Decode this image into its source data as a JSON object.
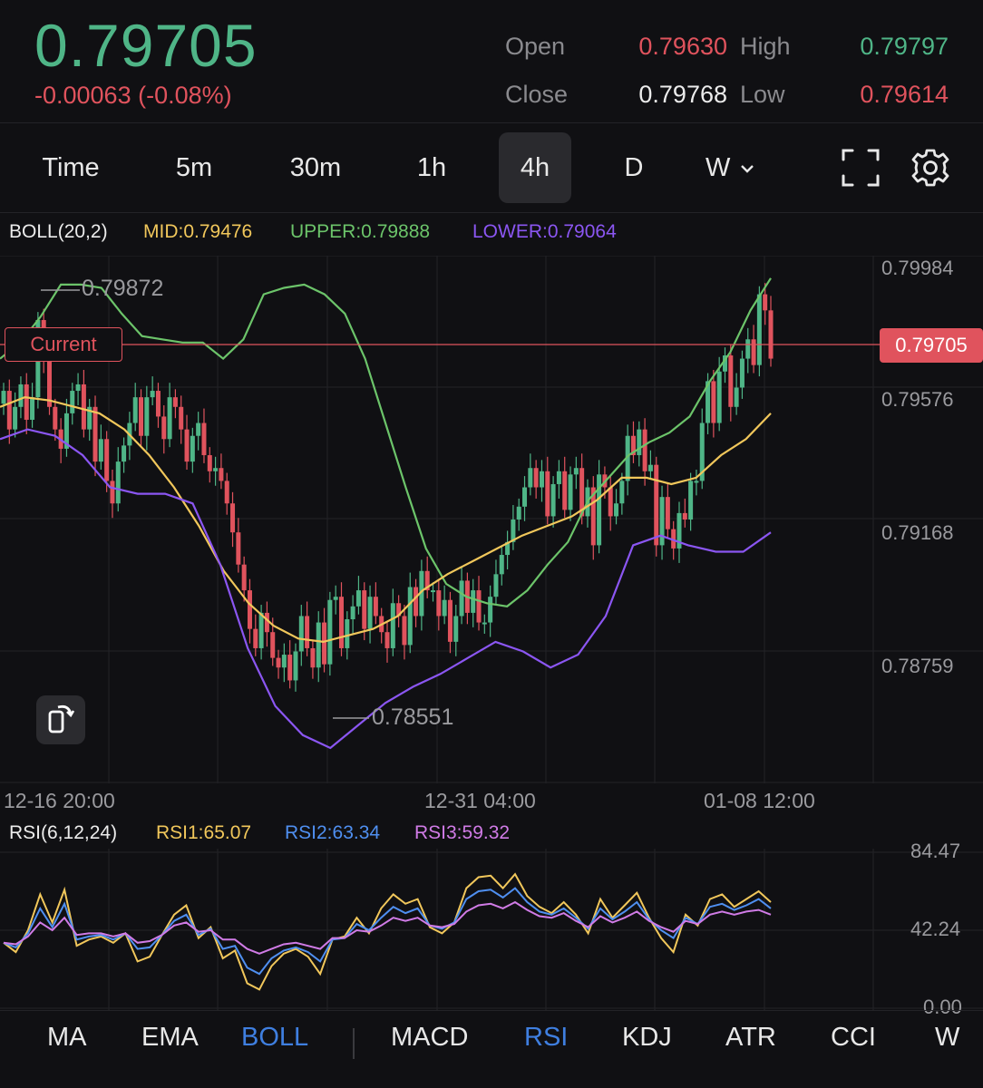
{
  "header": {
    "price": "0.79705",
    "change": "-0.00063 (-0.08%)",
    "open_label": "Open",
    "open_value": "0.79630",
    "high_label": "High",
    "high_value": "0.79797",
    "close_label": "Close",
    "close_value": "0.79768",
    "low_label": "Low",
    "low_value": "0.79614"
  },
  "timeframes": [
    "Time",
    "5m",
    "30m",
    "1h",
    "4h",
    "D",
    "W"
  ],
  "active_timeframe": "4h",
  "icons": {
    "fullscreen": "fullscreen-icon",
    "settings": "gear-icon",
    "rotate": "rotate-screen-icon",
    "dropdown": "chevron-down-icon"
  },
  "boll_legend": {
    "name": "BOLL(20,2)",
    "mid": "MID:0.79476",
    "upper": "UPPER:0.79888",
    "lower": "LOWER:0.79064"
  },
  "rsi_legend": {
    "name": "RSI(6,12,24)",
    "rsi1": "RSI1:65.07",
    "rsi2": "RSI2:63.34",
    "rsi3": "RSI3:59.32"
  },
  "price_axis": [
    "0.79984",
    "0.79576",
    "0.79168",
    "0.78759"
  ],
  "rsi_axis": [
    "84.47",
    "42.24",
    "0.00"
  ],
  "time_axis": [
    "12-16 20:00",
    "12-31 04:00",
    "01-08 12:00"
  ],
  "markers": {
    "high": "0.79872",
    "low": "0.78551",
    "current_label": "Current",
    "current_price": "0.79705"
  },
  "indicator_tabs": [
    "MA",
    "EMA",
    "BOLL",
    "MACD",
    "RSI",
    "KDJ",
    "ATR",
    "CCI",
    "W"
  ],
  "active_indicator_tabs": [
    "BOLL",
    "RSI"
  ],
  "colors": {
    "up": "#4fb587",
    "down": "#e0535d",
    "mid": "#f1c75b",
    "upper": "#6cc46a",
    "lower": "#8b56f2",
    "rsi1": "#f1c75b",
    "rsi2": "#4f8ff0",
    "rsi3": "#d07be6",
    "accent": "#3f7fe0"
  },
  "chart_data": {
    "type": "candlestick",
    "y_range": [
      0.7838,
      0.8002
    ],
    "candles_close": [
      0.796,
      0.7948,
      0.7955,
      0.7962,
      0.7951,
      0.7958,
      0.7982,
      0.797,
      0.7955,
      0.7948,
      0.7942,
      0.7953,
      0.796,
      0.7962,
      0.7948,
      0.7955,
      0.7938,
      0.7945,
      0.7932,
      0.7925,
      0.7938,
      0.7943,
      0.795,
      0.7958,
      0.7946,
      0.7958,
      0.796,
      0.7952,
      0.7945,
      0.7958,
      0.7955,
      0.7948,
      0.7938,
      0.7946,
      0.795,
      0.794,
      0.7935,
      0.7936,
      0.7932,
      0.7925,
      0.7916,
      0.7906,
      0.7898,
      0.7886,
      0.788,
      0.7891,
      0.7885,
      0.7877,
      0.7874,
      0.7878,
      0.787,
      0.7879,
      0.789,
      0.788,
      0.7874,
      0.7888,
      0.7875,
      0.7895,
      0.7896,
      0.788,
      0.7889,
      0.7893,
      0.7898,
      0.7886,
      0.7896,
      0.789,
      0.7885,
      0.788,
      0.7894,
      0.789,
      0.7881,
      0.7899,
      0.789,
      0.7904,
      0.7898,
      0.7898,
      0.789,
      0.7895,
      0.7882,
      0.789,
      0.7901,
      0.7891,
      0.7898,
      0.7888,
      0.7888,
      0.7896,
      0.7903,
      0.7909,
      0.7913,
      0.792,
      0.7924,
      0.793,
      0.7936,
      0.793,
      0.7935,
      0.7921,
      0.7931,
      0.7935,
      0.7923,
      0.7934,
      0.7936,
      0.7921,
      0.793,
      0.7912,
      0.7934,
      0.793,
      0.7921,
      0.7925,
      0.7932,
      0.7946,
      0.794,
      0.7948,
      0.7935,
      0.7937,
      0.7912,
      0.7927,
      0.7917,
      0.7911,
      0.7922,
      0.792,
      0.7932,
      0.7932,
      0.795,
      0.7963,
      0.795,
      0.7966,
      0.7971,
      0.7955,
      0.7961,
      0.797,
      0.7976,
      0.7968,
      0.799,
      0.7985,
      0.797
    ],
    "boll_upper": [
      0.797,
      0.7975,
      0.7983,
      0.7993,
      0.7993,
      0.7992,
      0.7984,
      0.7977,
      0.7976,
      0.7975,
      0.7975,
      0.797,
      0.7976,
      0.799,
      0.7992,
      0.7993,
      0.799,
      0.7984,
      0.797,
      0.795,
      0.793,
      0.7911,
      0.79,
      0.7896,
      0.7894,
      0.7893,
      0.7898,
      0.7906,
      0.7913,
      0.7926,
      0.7933,
      0.794,
      0.7944,
      0.7947,
      0.7952,
      0.7963,
      0.7972,
      0.7985,
      0.7995
    ],
    "boll_mid": [
      0.7955,
      0.7958,
      0.7957,
      0.7955,
      0.7953,
      0.7948,
      0.794,
      0.793,
      0.7918,
      0.7904,
      0.7894,
      0.7887,
      0.7883,
      0.7882,
      0.7884,
      0.7886,
      0.789,
      0.7898,
      0.7903,
      0.7907,
      0.7911,
      0.7915,
      0.7918,
      0.7921,
      0.7926,
      0.7933,
      0.7933,
      0.7931,
      0.7933,
      0.794,
      0.7945,
      0.7953
    ],
    "boll_lower": [
      0.7945,
      0.7948,
      0.7946,
      0.794,
      0.793,
      0.7928,
      0.7928,
      0.7925,
      0.7906,
      0.788,
      0.7862,
      0.7853,
      0.7849,
      0.7856,
      0.7863,
      0.7868,
      0.7872,
      0.7877,
      0.7882,
      0.7879,
      0.7874,
      0.7878,
      0.789,
      0.7912,
      0.7915,
      0.7912,
      0.791,
      0.791,
      0.7916
    ],
    "rsi1": [
      42,
      36,
      50,
      73,
      55,
      76,
      40,
      44,
      46,
      42,
      48,
      30,
      33,
      47,
      60,
      66,
      45,
      52,
      32,
      37,
      16,
      12,
      27,
      35,
      38,
      33,
      22,
      44,
      46,
      58,
      48,
      64,
      73,
      67,
      70,
      52,
      48,
      55,
      77,
      84,
      85,
      77,
      86,
      72,
      65,
      61,
      68,
      60,
      48,
      70,
      58,
      66,
      74,
      58,
      45,
      36,
      60,
      53,
      70,
      73,
      65,
      70,
      75,
      68
    ],
    "rsi2": [
      42,
      39,
      48,
      64,
      52,
      67,
      44,
      46,
      47,
      44,
      48,
      38,
      39,
      47,
      56,
      60,
      47,
      51,
      38,
      40,
      26,
      22,
      32,
      37,
      39,
      36,
      30,
      44,
      45,
      54,
      50,
      58,
      65,
      61,
      64,
      53,
      51,
      55,
      70,
      75,
      76,
      71,
      77,
      68,
      62,
      60,
      64,
      58,
      51,
      64,
      57,
      62,
      68,
      57,
      50,
      45,
      58,
      54,
      65,
      67,
      63,
      66,
      70,
      64
    ],
    "rsi3": [
      42,
      41,
      46,
      55,
      50,
      58,
      47,
      48,
      48,
      46,
      48,
      42,
      43,
      47,
      53,
      55,
      49,
      50,
      44,
      44,
      38,
      35,
      38,
      41,
      42,
      40,
      38,
      45,
      45,
      50,
      49,
      53,
      58,
      56,
      58,
      53,
      52,
      54,
      62,
      66,
      67,
      64,
      68,
      63,
      59,
      58,
      61,
      56,
      52,
      59,
      55,
      58,
      62,
      56,
      52,
      49,
      56,
      54,
      60,
      62,
      60,
      62,
      63,
      60
    ],
    "rsi_range": [
      0,
      100
    ]
  }
}
